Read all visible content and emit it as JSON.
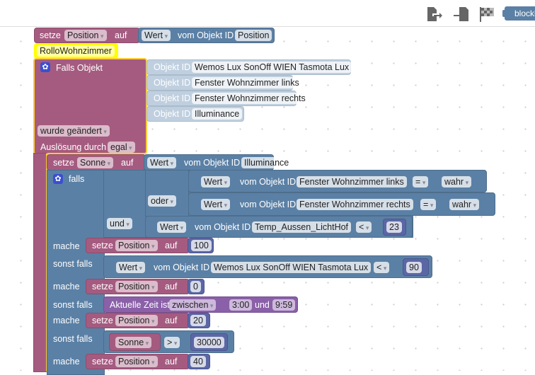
{
  "toolbar": {
    "icons": [
      "export-icon",
      "import-icon",
      "checkered-flag-icon"
    ],
    "blockly_label": "blockly"
  },
  "blocks": {
    "set_position": {
      "setze": "setze",
      "var": "Position",
      "auf": "auf",
      "wert": "Wert",
      "vom": "vom Objekt ID",
      "obj": "Position"
    },
    "comment": "RolloWohnzimmer",
    "trigger": {
      "label": "Falls Objekt",
      "objekt_id": "Objekt ID",
      "objects": [
        "Wemos Lux SonOff WIEN Tasmota Lux",
        "Fenster Wohnzimmer links",
        "Fenster Wohnzimmer rechts",
        "Illuminance"
      ],
      "change": "wurde geändert",
      "ausl": "Auslösung durch",
      "ausl_val": "egal"
    },
    "set_sonne": {
      "setze": "setze",
      "var": "Sonne",
      "auf": "auf",
      "wert": "Wert",
      "vom": "vom Objekt ID",
      "obj": "Illuminance"
    },
    "if": {
      "falls": "falls",
      "mache": "mache",
      "sonst": "sonst falls",
      "und": "und",
      "oder": "oder",
      "c1": {
        "wert": "Wert",
        "vom": "vom Objekt ID",
        "obj": "Fenster Wohnzimmer links",
        "op": "=",
        "val": "wahr"
      },
      "c2": {
        "wert": "Wert",
        "vom": "vom Objekt ID",
        "obj": "Fenster Wohnzimmer rechts",
        "op": "=",
        "val": "wahr"
      },
      "c3": {
        "wert": "Wert",
        "vom": "vom Objekt ID",
        "obj": "Temp_Aussen_LichtHof",
        "op": "<",
        "val": "23"
      },
      "c4": {
        "wert": "Wert",
        "vom": "vom Objekt ID",
        "obj": "Wemos Lux SonOff WIEN Tasmota Lux",
        "op": "<",
        "val": "90"
      },
      "c5": {
        "label": "Aktuelle Zeit ist",
        "mode": "zwischen",
        "from": "3:00",
        "und": "und",
        "to": "9:59"
      },
      "c6": {
        "var": "Sonne",
        "op": ">",
        "val": "30000"
      },
      "sets": [
        "100",
        "0",
        "20",
        "40"
      ],
      "setze": "setze",
      "var": "Position",
      "auf": "auf"
    }
  }
}
